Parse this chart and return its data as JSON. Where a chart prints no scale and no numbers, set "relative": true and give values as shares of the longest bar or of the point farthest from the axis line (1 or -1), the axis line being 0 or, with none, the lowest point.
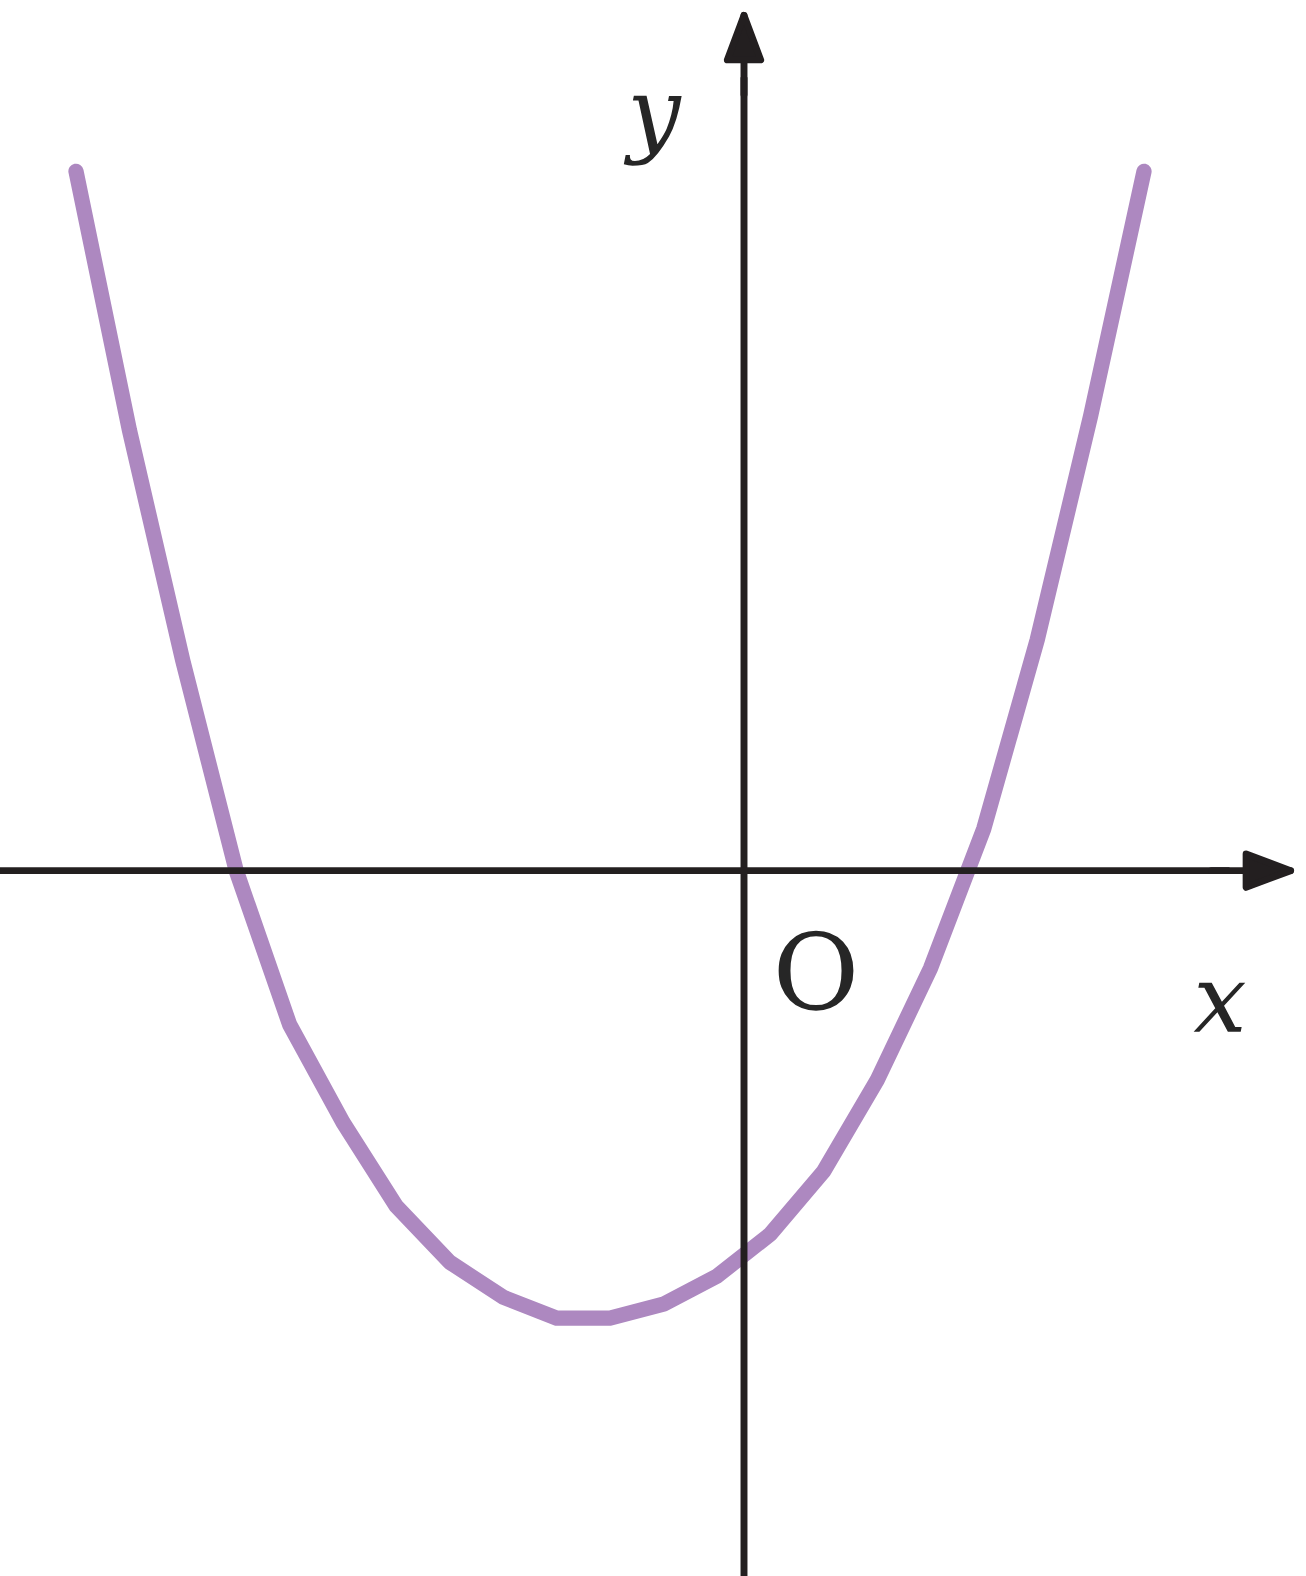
{
  "chart_data": {
    "type": "line",
    "relative": true,
    "xlabel": "x",
    "ylabel": "y",
    "annotations": [
      "O"
    ],
    "categories": [
      null,
      null,
      null,
      null,
      null,
      null,
      null,
      null,
      null,
      null,
      null,
      null,
      null,
      null,
      null,
      null,
      null,
      null,
      null,
      null,
      null
    ],
    "series": [
      {
        "color": "#ad88c0",
        "values": [
          1.0,
          0.63,
          0.3,
          0.0,
          -0.22,
          -0.36,
          -0.48,
          -0.56,
          -0.61,
          -0.64,
          -0.64,
          -0.62,
          -0.58,
          -0.52,
          -0.43,
          -0.3,
          -0.14,
          0.06,
          0.33,
          0.65,
          1.0
        ]
      }
    ],
    "legend": false,
    "marker": "none",
    "line_style": "solid"
  }
}
